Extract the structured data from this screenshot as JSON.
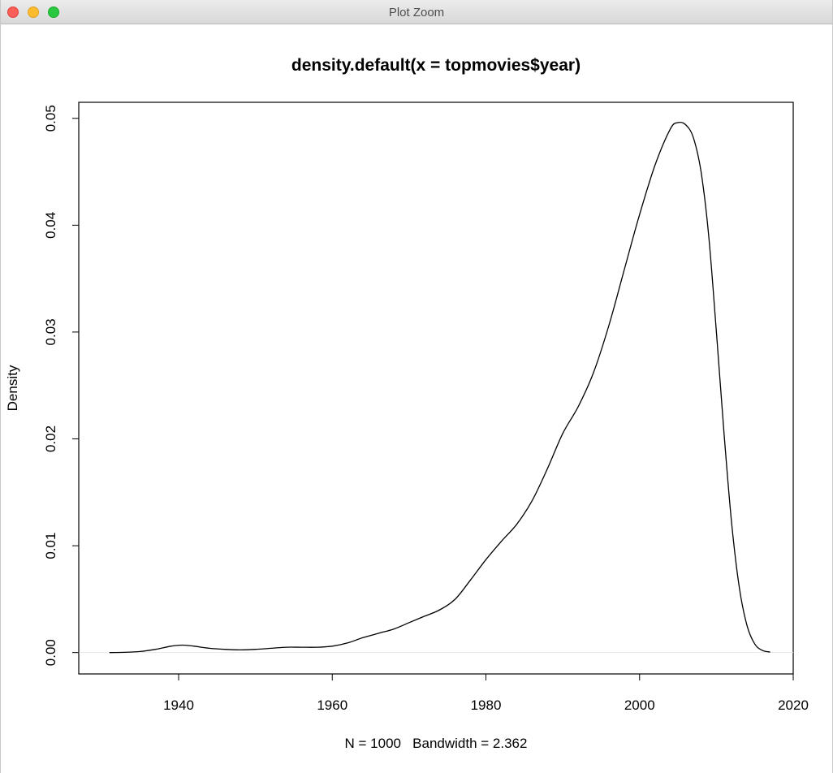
{
  "window": {
    "title": "Plot Zoom"
  },
  "chart_data": {
    "type": "line",
    "title": "density.default(x = topmovies$year)",
    "xlabel": "N = 1000   Bandwidth = 2.362",
    "ylabel": "Density",
    "xlim": [
      1927,
      2020
    ],
    "ylim": [
      -0.002,
      0.0515
    ],
    "x_ticks": [
      1940,
      1960,
      1980,
      2000,
      2020
    ],
    "x_tick_labels": [
      "1940",
      "1960",
      "1980",
      "2000",
      "2020"
    ],
    "y_ticks": [
      0.0,
      0.01,
      0.02,
      0.03,
      0.04,
      0.05
    ],
    "y_tick_labels": [
      "0.00",
      "0.01",
      "0.02",
      "0.03",
      "0.04",
      "0.05"
    ],
    "grid": false,
    "baseline": 0,
    "series": [
      {
        "x": [
          1931,
          1933,
          1935,
          1937,
          1939,
          1940.5,
          1942,
          1944,
          1946,
          1948,
          1950,
          1952,
          1954,
          1956,
          1958,
          1960,
          1962,
          1964,
          1966,
          1968,
          1970,
          1972,
          1974,
          1976,
          1978,
          1980,
          1982,
          1984,
          1986,
          1988,
          1990,
          1992,
          1994,
          1996,
          1998,
          2000,
          2002,
          2004,
          2005,
          2006,
          2007,
          2008,
          2009,
          2010,
          2011,
          2012,
          2013,
          2014,
          2015,
          2016,
          2017
        ],
        "y": [
          0.0,
          2e-05,
          0.0001,
          0.0003,
          0.0006,
          0.0007,
          0.0006,
          0.0004,
          0.0003,
          0.00025,
          0.0003,
          0.0004,
          0.0005,
          0.0005,
          0.0005,
          0.0006,
          0.0009,
          0.0014,
          0.0018,
          0.0022,
          0.0028,
          0.0034,
          0.004,
          0.005,
          0.0068,
          0.0087,
          0.0104,
          0.012,
          0.0142,
          0.0172,
          0.0205,
          0.023,
          0.0262,
          0.0306,
          0.0358,
          0.041,
          0.0456,
          0.049,
          0.0496,
          0.0494,
          0.0482,
          0.045,
          0.039,
          0.03,
          0.0205,
          0.012,
          0.006,
          0.0025,
          0.0008,
          0.0002,
          5e-05
        ]
      }
    ]
  }
}
